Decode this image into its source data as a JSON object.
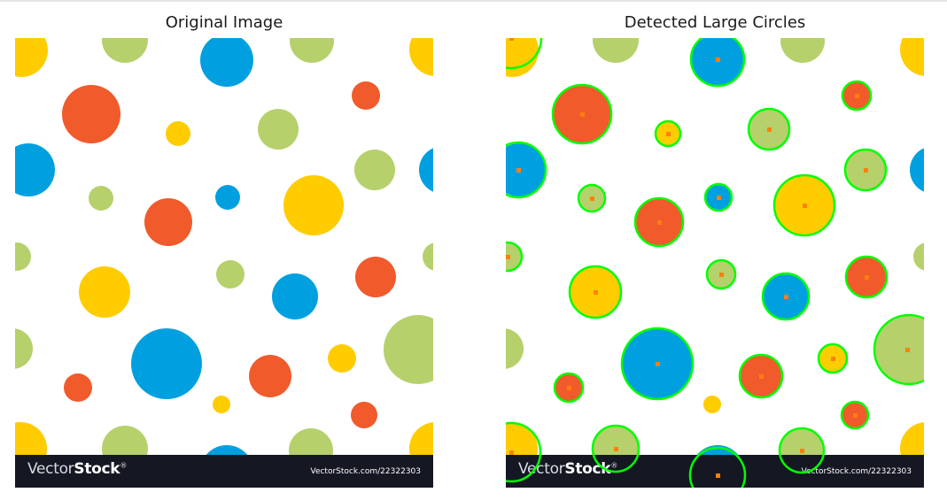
{
  "panels": {
    "left_title": "Original Image",
    "right_title": "Detected Large Circles"
  },
  "banner": {
    "brand_light": "Vector",
    "brand_bold": "Stock",
    "brand_mark": "®",
    "url": "VectorStock.com/22322303"
  },
  "colors": {
    "yellow": "#ffcc00",
    "green": "#b6d06c",
    "blue": "#00a0e0",
    "orange": "#f15a2b",
    "detection_ring": "#00ff00",
    "detection_center": "#ff7f0e",
    "banner_bg": "#151723"
  }
}
